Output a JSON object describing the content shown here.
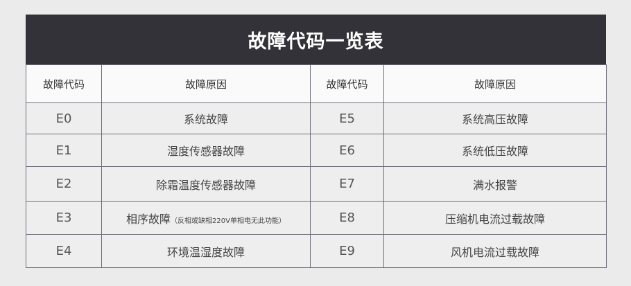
{
  "title": "故障代码一览表",
  "headers": [
    "故障代码",
    "故障原因",
    "故障代码",
    "故障原因"
  ],
  "rows": [
    {
      "code_l": "E0",
      "reason_l": "系统故障",
      "note_l": "",
      "code_r": "E5",
      "reason_r": "系统高压故障"
    },
    {
      "code_l": "E1",
      "reason_l": "湿度传感器故障",
      "note_l": "",
      "code_r": "E6",
      "reason_r": "系统低压故障"
    },
    {
      "code_l": "E2",
      "reason_l": "除霜温度传感器故障",
      "note_l": "",
      "code_r": "E7",
      "reason_r": "满水报警"
    },
    {
      "code_l": "E3",
      "reason_l": "相序故障",
      "note_l": "（反相或缺相220V单相电无此功能）",
      "code_r": "E8",
      "reason_r": "压缩机电流过载故障"
    },
    {
      "code_l": "E4",
      "reason_l": "环境温湿度故障",
      "note_l": "",
      "code_r": "E9",
      "reason_r": "风机电流过载故障"
    }
  ]
}
